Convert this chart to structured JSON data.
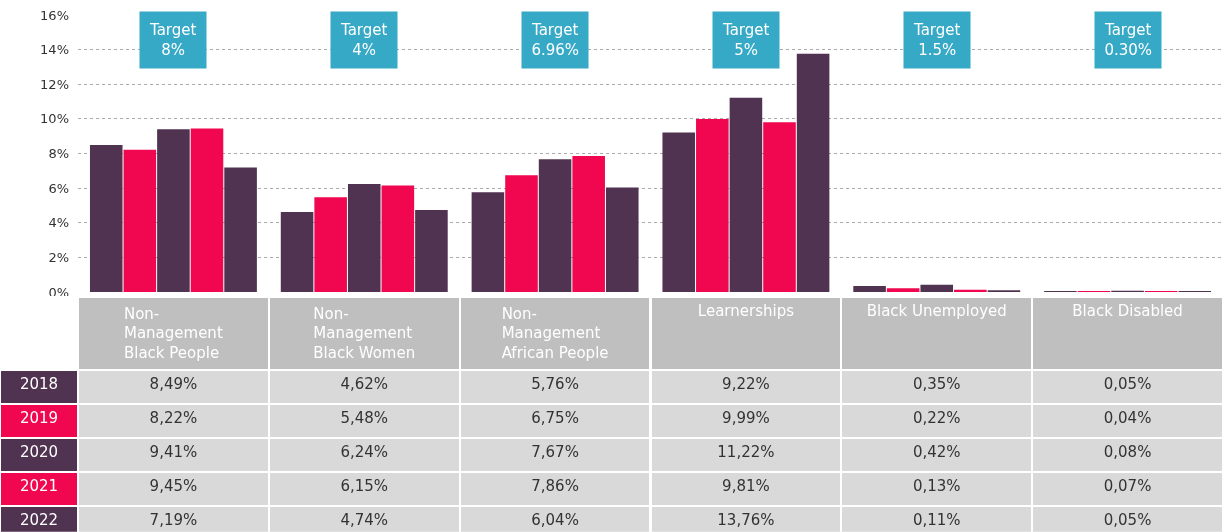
{
  "chart_data": {
    "type": "bar",
    "categories": [
      "Non-\nManagement\nBlack People",
      "Non-\nManagement\nBlack Women",
      "Non-\nManagement\nAfrican People",
      "Learnerships",
      "Black Unemployed",
      "Black Disabled"
    ],
    "series": [
      {
        "name": "2018",
        "color": "#4f3350",
        "values": [
          8.49,
          4.62,
          5.76,
          9.22,
          0.35,
          0.05
        ],
        "value_labels": [
          "8,49%",
          "4,62%",
          "5,76%",
          "9,22%",
          "0,35%",
          "0,05%"
        ]
      },
      {
        "name": "2019",
        "color": "#f0074f",
        "values": [
          8.22,
          5.48,
          6.75,
          9.99,
          0.22,
          0.04
        ],
        "value_labels": [
          "8,22%",
          "5,48%",
          "6,75%",
          "9,99%",
          "0,22%",
          "0,04%"
        ]
      },
      {
        "name": "2020",
        "color": "#4f3350",
        "values": [
          9.41,
          6.24,
          7.67,
          11.22,
          0.42,
          0.08
        ],
        "value_labels": [
          "9,41%",
          "6,24%",
          "7,67%",
          "11,22%",
          "0,42%",
          "0,08%"
        ]
      },
      {
        "name": "2021",
        "color": "#f0074f",
        "values": [
          9.45,
          6.15,
          7.86,
          9.81,
          0.13,
          0.07
        ],
        "value_labels": [
          "9,45%",
          "6,15%",
          "7,86%",
          "9,81%",
          "0,13%",
          "0,07%"
        ]
      },
      {
        "name": "2022",
        "color": "#4f3350",
        "values": [
          7.19,
          4.74,
          6.04,
          13.76,
          0.11,
          0.05
        ],
        "value_labels": [
          "7,19%",
          "4,74%",
          "6,04%",
          "13,76%",
          "0,11%",
          "0,05%"
        ]
      }
    ],
    "annotations": [
      "Target\n8%",
      "Target\n4%",
      "Target\n6.96%",
      "Target\n5%",
      "Target\n1.5%",
      "Target\n0.30%"
    ],
    "ylim": [
      0,
      16
    ],
    "yticks": [
      {
        "value": 0,
        "label": "0%"
      },
      {
        "value": 2,
        "label": "2%"
      },
      {
        "value": 4,
        "label": "4%"
      },
      {
        "value": 6,
        "label": "6%"
      },
      {
        "value": 8,
        "label": "8%"
      },
      {
        "value": 10,
        "label": "10%"
      },
      {
        "value": 12,
        "label": "12%"
      },
      {
        "value": 14,
        "label": "14%"
      },
      {
        "value": 16,
        "label": "16%"
      }
    ],
    "grid": "y",
    "legend": false
  }
}
